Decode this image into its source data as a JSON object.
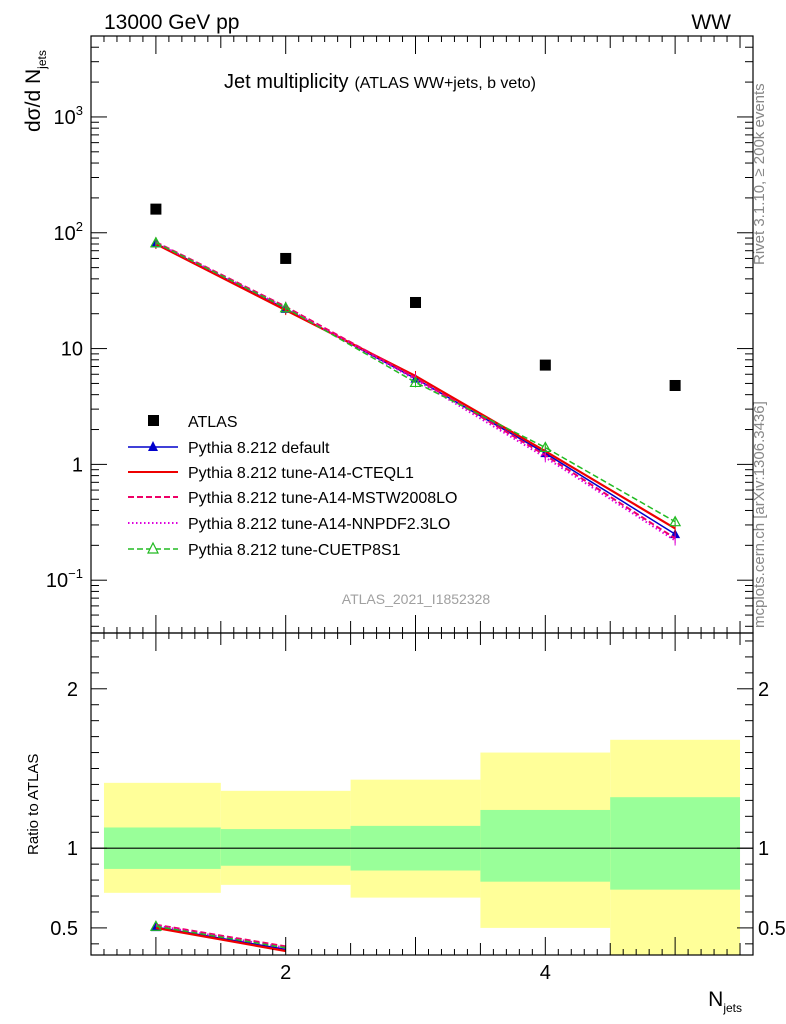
{
  "header": {
    "left": "13000 GeV pp",
    "right": "WW"
  },
  "plot_title": "Jet multiplicity",
  "plot_subtitle": "(ATLAS WW+jets, b veto)",
  "side_label_rivet": "Rivet 3.1.10, ≥ 200k events",
  "side_label_mcplots": "mcplots.cern.ch [arXiv:1306.3436]",
  "analysis_id": "ATLAS_2021_I1852328",
  "colors": {
    "atlas": "#000000",
    "default": "#0000cc",
    "cteql1": "#ee0000",
    "mstw": "#ee0066",
    "nnpdf": "#dd00dd",
    "cuetp8s1": "#22bb22",
    "band_outer": "#ffff99",
    "band_inner": "#99ff99"
  },
  "chart_data": [
    {
      "type": "line",
      "panel": "main",
      "title": "Jet multiplicity",
      "ylabel": "dσ/d N_jets",
      "yscale": "log",
      "ylim": [
        0.035,
        5000
      ],
      "xlim": [
        0.5,
        5.6
      ],
      "y_tick_labels": [
        {
          "base": "10",
          "exp": "3"
        },
        {
          "base": "10",
          "exp": "2"
        },
        {
          "base": "10",
          "exp": ""
        },
        {
          "base": "1",
          "exp": ""
        },
        {
          "base": "10",
          "exp": "−1"
        }
      ],
      "x": [
        1,
        2,
        3,
        4,
        5
      ],
      "series": [
        {
          "name": "ATLAS",
          "key": "atlas",
          "style": "data",
          "values": [
            160,
            60,
            25,
            7.2,
            4.8
          ]
        },
        {
          "name": "Pythia 8.212 default",
          "key": "default",
          "style": "solid-triangle",
          "values": [
            81,
            22,
            5.5,
            1.25,
            0.25
          ]
        },
        {
          "name": "Pythia 8.212 tune-A14-CTEQL1",
          "key": "cteql1",
          "style": "solid",
          "values": [
            80,
            21.5,
            5.8,
            1.3,
            0.28
          ]
        },
        {
          "name": "Pythia 8.212 tune-A14-MSTW2008LO",
          "key": "mstw",
          "style": "dashed",
          "values": [
            83,
            23,
            5.6,
            1.2,
            0.23
          ]
        },
        {
          "name": "Pythia 8.212 tune-A14-NNPDF2.3LO",
          "key": "nnpdf",
          "style": "dotted",
          "values": [
            82,
            22.5,
            5.4,
            1.15,
            0.22
          ]
        },
        {
          "name": "Pythia 8.212 tune-CUETP8S1",
          "key": "cuetp8s1",
          "style": "dashed-open-triangle",
          "values": [
            82,
            22.5,
            5.1,
            1.4,
            0.32
          ]
        }
      ]
    },
    {
      "type": "line",
      "panel": "ratio",
      "ylabel": "Ratio to ATLAS",
      "xlabel": "N_jets",
      "ylim": [
        0.33,
        2.35
      ],
      "xlim": [
        0.5,
        5.6
      ],
      "y_tick_labels": [
        "2",
        "1",
        "0.5"
      ],
      "x_tick_labels": [
        "2",
        "4"
      ],
      "bands": [
        {
          "x0": 0.6,
          "x1": 1.5,
          "inner": [
            0.87,
            1.13
          ],
          "outer": [
            0.72,
            1.41
          ]
        },
        {
          "x0": 1.5,
          "x1": 2.5,
          "inner": [
            0.89,
            1.12
          ],
          "outer": [
            0.77,
            1.36
          ]
        },
        {
          "x0": 2.5,
          "x1": 3.5,
          "inner": [
            0.86,
            1.14
          ],
          "outer": [
            0.69,
            1.43
          ]
        },
        {
          "x0": 3.5,
          "x1": 4.5,
          "inner": [
            0.79,
            1.24
          ],
          "outer": [
            0.5,
            1.6
          ]
        },
        {
          "x0": 4.5,
          "x1": 5.5,
          "inner": [
            0.74,
            1.32
          ],
          "outer": [
            0.33,
            1.68
          ]
        }
      ],
      "series": [
        {
          "name": "Pythia 8.212 default",
          "key": "default",
          "values": [
            0.505,
            0.365
          ]
        },
        {
          "name": "Pythia 8.212 tune-A14-CTEQL1",
          "key": "cteql1",
          "values": [
            0.5,
            0.355
          ]
        },
        {
          "name": "Pythia 8.212 tune-A14-MSTW2008LO",
          "key": "mstw",
          "values": [
            0.52,
            0.384
          ]
        },
        {
          "name": "Pythia 8.212 tune-A14-NNPDF2.3LO",
          "key": "nnpdf",
          "values": [
            0.515,
            0.375
          ]
        },
        {
          "name": "Pythia 8.212 tune-CUETP8S1",
          "key": "cuetp8s1",
          "values": [
            0.51,
            0.375
          ]
        }
      ]
    }
  ]
}
